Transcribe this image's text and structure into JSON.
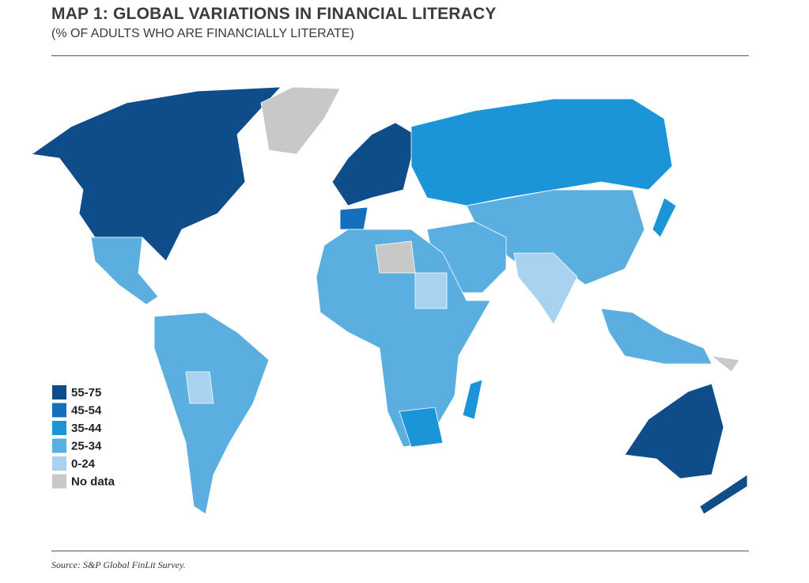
{
  "header": {
    "title": "MAP 1: GLOBAL VARIATIONS IN FINANCIAL LITERACY",
    "subtitle": "(% OF ADULTS WHO ARE FINANCIALLY LITERATE)"
  },
  "legend": {
    "items": [
      {
        "label": "55-75",
        "color": "#0f4c8a"
      },
      {
        "label": "45-54",
        "color": "#1470bf"
      },
      {
        "label": "35-44",
        "color": "#1c95d8"
      },
      {
        "label": "25-34",
        "color": "#5aaee0"
      },
      {
        "label": "0-24",
        "color": "#a8d2ef"
      },
      {
        "label": "No data",
        "color": "#c8c8c8"
      }
    ]
  },
  "source": "Source: S&P Global FinLit Survey."
}
